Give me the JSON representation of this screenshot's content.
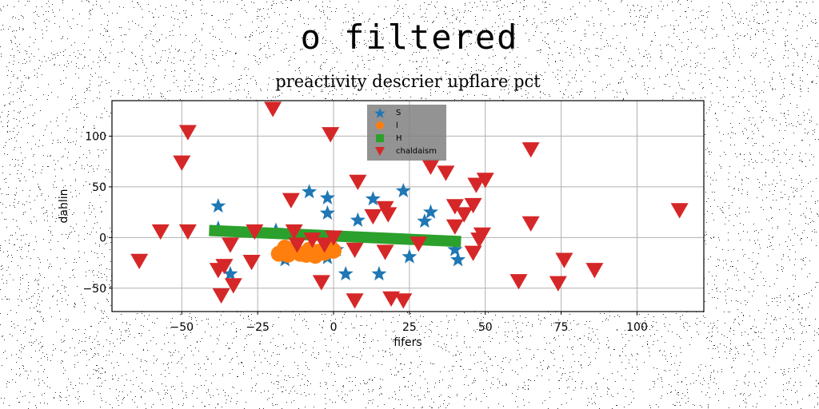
{
  "suptitle": "o filtered",
  "chart_data": {
    "type": "scatter",
    "title": "preactivity descrier upflare pct",
    "xlabel": "fifers",
    "ylabel": "dahlin",
    "xlim": [
      -73,
      122
    ],
    "ylim": [
      -73,
      135
    ],
    "xticks": [
      "−50",
      "−25",
      "0",
      "25",
      "50",
      "75",
      "100"
    ],
    "xtick_values": [
      -50,
      -25,
      0,
      25,
      50,
      75,
      100
    ],
    "yticks": [
      "100",
      "50",
      "0",
      "−50"
    ],
    "ytick_values": [
      100,
      50,
      0,
      -50
    ],
    "grid": true,
    "legend_placement": "top-center",
    "series": [
      {
        "name": "S",
        "marker": "star",
        "color": "#1f77b4",
        "points": [
          [
            -38,
            31
          ],
          [
            -38,
            9
          ],
          [
            -34,
            -36
          ],
          [
            -19,
            7
          ],
          [
            -16,
            -22
          ],
          [
            -8,
            45
          ],
          [
            -2,
            39
          ],
          [
            -2,
            24
          ],
          [
            -2,
            -20
          ],
          [
            1,
            -12
          ],
          [
            4,
            -36
          ],
          [
            8,
            17
          ],
          [
            13,
            38
          ],
          [
            15,
            -36
          ],
          [
            23,
            46
          ],
          [
            25,
            -19
          ],
          [
            30,
            16
          ],
          [
            32,
            25
          ],
          [
            40,
            -12
          ],
          [
            41,
            -22
          ]
        ]
      },
      {
        "name": "l",
        "marker": "circle",
        "color": "#ff7f0e",
        "points": [
          [
            -18,
            -16
          ],
          [
            -16,
            -10
          ],
          [
            -15,
            -17
          ],
          [
            -13,
            -12
          ],
          [
            -11,
            -16
          ],
          [
            -9,
            -17
          ],
          [
            -8,
            -12
          ],
          [
            -6,
            -18
          ],
          [
            -5,
            -14
          ],
          [
            -3,
            -15
          ],
          [
            -1,
            -10
          ],
          [
            0,
            -13
          ],
          [
            -14,
            -14
          ],
          [
            -7,
            -15
          ]
        ]
      },
      {
        "name": "H",
        "marker": "line",
        "color": "#2ca02c",
        "points": [
          [
            -41,
            7
          ],
          [
            42,
            -4
          ]
        ]
      },
      {
        "name": "chaldaism",
        "marker": "triangle-down",
        "color": "#d62728",
        "points": [
          [
            -64,
            -23
          ],
          [
            -57,
            6
          ],
          [
            -50,
            74
          ],
          [
            -48,
            104
          ],
          [
            -48,
            6
          ],
          [
            -38,
            -32
          ],
          [
            -37,
            -57
          ],
          [
            -36,
            -28
          ],
          [
            -34,
            -7
          ],
          [
            -33,
            -47
          ],
          [
            -27,
            -24
          ],
          [
            -26,
            6
          ],
          [
            -20,
            127
          ],
          [
            -14,
            37
          ],
          [
            -13,
            6
          ],
          [
            -12,
            -7
          ],
          [
            -7,
            -2
          ],
          [
            -4,
            -44
          ],
          [
            -3,
            -7
          ],
          [
            -1,
            102
          ],
          [
            0,
            0
          ],
          [
            7,
            -62
          ],
          [
            7,
            -12
          ],
          [
            8,
            55
          ],
          [
            13,
            21
          ],
          [
            17,
            -14
          ],
          [
            17,
            29
          ],
          [
            18,
            23
          ],
          [
            19,
            -60
          ],
          [
            23,
            -62
          ],
          [
            28,
            -6
          ],
          [
            32,
            70
          ],
          [
            37,
            64
          ],
          [
            40,
            31
          ],
          [
            40,
            11
          ],
          [
            43,
            23
          ],
          [
            46,
            -15
          ],
          [
            46,
            32
          ],
          [
            47,
            52
          ],
          [
            48,
            -2
          ],
          [
            49,
            3
          ],
          [
            50,
            57
          ],
          [
            61,
            -43
          ],
          [
            65,
            14
          ],
          [
            65,
            87
          ],
          [
            74,
            -45
          ],
          [
            76,
            -22
          ],
          [
            86,
            -32
          ],
          [
            114,
            27
          ]
        ]
      }
    ]
  }
}
